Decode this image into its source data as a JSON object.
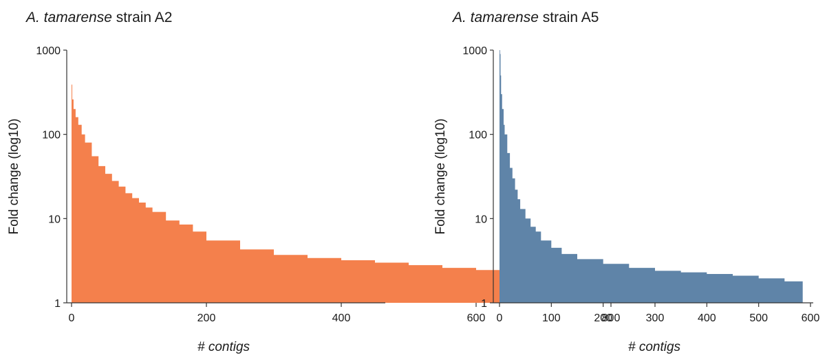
{
  "chart_data": [
    {
      "type": "area",
      "title_italic": "A. tamarense",
      "title_rest": " strain A2",
      "xlabel": "# contigs",
      "ylabel": "Fold change (log10)",
      "yscale": "log",
      "ylim": [
        1,
        1000
      ],
      "xlim": [
        0,
        923
      ],
      "xticks": [
        0,
        200,
        400,
        600,
        800
      ],
      "yticks": [
        1,
        10,
        100,
        1000
      ],
      "color": "#f4804c",
      "x": [
        0,
        1,
        3,
        6,
        10,
        15,
        20,
        30,
        40,
        50,
        60,
        70,
        80,
        90,
        100,
        110,
        120,
        140,
        160,
        180,
        200,
        250,
        300,
        350,
        400,
        450,
        500,
        550,
        600,
        650,
        700,
        750,
        800,
        850,
        900,
        923
      ],
      "y": [
        390,
        260,
        200,
        160,
        130,
        100,
        80,
        55,
        42,
        34,
        28,
        24,
        20,
        17.5,
        15.5,
        13.5,
        12,
        9.5,
        8.5,
        7,
        5.5,
        4.3,
        3.7,
        3.4,
        3.2,
        3.0,
        2.8,
        2.6,
        2.45,
        2.3,
        2.2,
        2.1,
        1.95,
        1.85,
        1.75,
        1.6
      ]
    },
    {
      "type": "area",
      "title_italic": "A. tamarense",
      "title_rest": " strain A5",
      "xlabel": "# contigs",
      "ylabel": "Fold change (log10)",
      "yscale": "log",
      "ylim": [
        1,
        1000
      ],
      "xlim": [
        0,
        585
      ],
      "xticks": [
        0,
        100,
        200,
        300,
        400,
        500,
        600
      ],
      "yticks": [
        1,
        10,
        100,
        1000
      ],
      "color": "#5f84a8",
      "x": [
        0,
        1,
        2,
        3,
        5,
        8,
        10,
        15,
        20,
        25,
        30,
        35,
        40,
        50,
        60,
        70,
        80,
        100,
        120,
        150,
        200,
        250,
        300,
        350,
        400,
        450,
        500,
        550,
        585
      ],
      "y": [
        1000,
        900,
        500,
        300,
        200,
        130,
        100,
        60,
        40,
        30,
        22,
        17,
        13,
        10,
        8,
        7,
        5.5,
        4.5,
        3.8,
        3.3,
        2.9,
        2.6,
        2.4,
        2.3,
        2.2,
        2.1,
        1.95,
        1.8,
        1.6
      ]
    }
  ]
}
